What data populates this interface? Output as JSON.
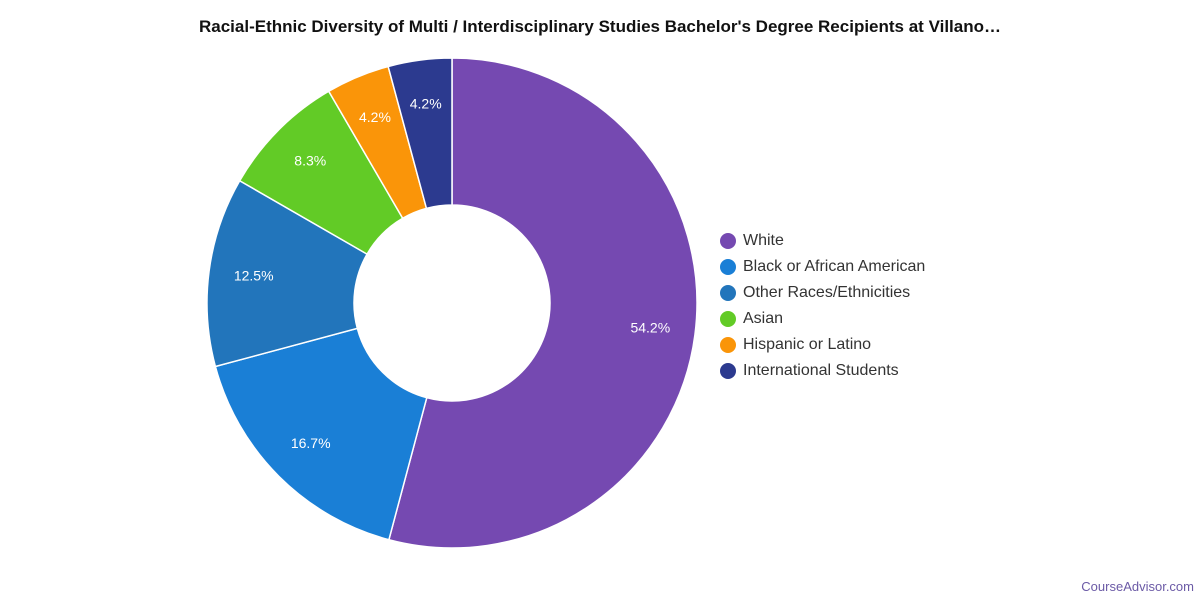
{
  "chart_data": {
    "type": "pie",
    "title": "Racial-Ethnic Diversity of Multi / Interdisciplinary Studies Bachelor's Degree Recipients at Villano…",
    "donut": true,
    "legend_position": "right",
    "slices": [
      {
        "name": "White",
        "value": 54.2,
        "label": "54.2%",
        "color": "#7549b1"
      },
      {
        "name": "Black or African American",
        "value": 16.7,
        "label": "16.7%",
        "color": "#1a7fd6"
      },
      {
        "name": "Other Races/Ethnicities",
        "value": 12.5,
        "label": "12.5%",
        "color": "#2275bb"
      },
      {
        "name": "Asian",
        "value": 8.3,
        "label": "8.3%",
        "color": "#62cb26"
      },
      {
        "name": "Hispanic or Latino",
        "value": 4.2,
        "label": "4.2%",
        "color": "#fa9509"
      },
      {
        "name": "International Students",
        "value": 4.2,
        "label": "4.2%",
        "color": "#2c3a8f"
      }
    ]
  },
  "footer": {
    "credit": "CourseAdvisor.com"
  }
}
